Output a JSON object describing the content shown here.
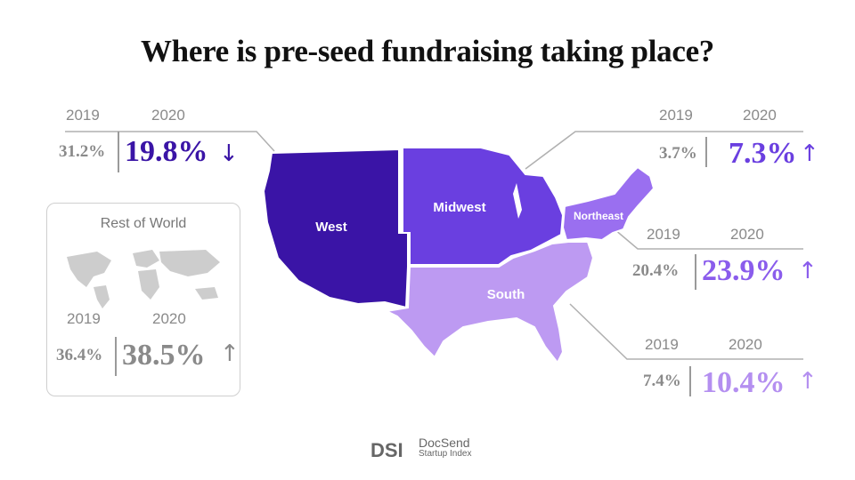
{
  "title": "Where is pre-seed fundraising taking place?",
  "colors": {
    "west": "#3a14a6",
    "midwest": "#6a3fe0",
    "northeast": "#9a6ff0",
    "south": "#bd9af2",
    "world": "#9a9a9a"
  },
  "regions": {
    "west": {
      "label": "West",
      "year_a": "2019",
      "year_b": "2020",
      "value_2019": "31.2%",
      "value_2020": "19.8%",
      "trend": "↓",
      "trend_icon": "arrow-down-icon"
    },
    "midwest": {
      "label": "Midwest",
      "year_a": "2019",
      "year_b": "2020",
      "value_2019": "3.7%",
      "value_2020": "7.3%",
      "trend": "↑",
      "trend_icon": "arrow-up-icon"
    },
    "northeast": {
      "label": "Northeast",
      "year_a": "2019",
      "year_b": "2020",
      "value_2019": "20.4%",
      "value_2020": "23.9%",
      "trend": "↑",
      "trend_icon": "arrow-up-icon"
    },
    "south": {
      "label": "South",
      "year_a": "2019",
      "year_b": "2020",
      "value_2019": "7.4%",
      "value_2020": "10.4%",
      "trend": "↑",
      "trend_icon": "arrow-up-icon"
    },
    "rest_of_world": {
      "label": "Rest of World",
      "year_a": "2019",
      "year_b": "2020",
      "value_2019": "36.4%",
      "value_2020": "38.5%",
      "trend": "↑",
      "trend_icon": "arrow-up-icon"
    }
  },
  "logo": {
    "brand": "DocSend",
    "sub": "Startup Index",
    "mark": "DSI"
  }
}
